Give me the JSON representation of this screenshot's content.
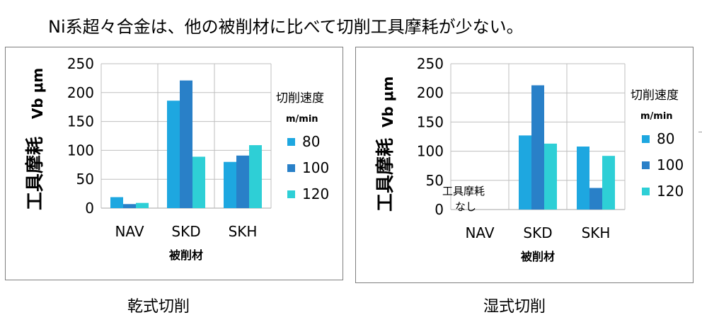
{
  "headline": "Ni系超々合金は、他の被削材に比べて切削工具摩耗が少ない。",
  "colors": {
    "s80": "#1ea7e0",
    "s100": "#2980c8",
    "s120": "#2ecfd6",
    "grid": "#bfbfbf"
  },
  "chart_data": [
    {
      "type": "bar",
      "caption": "乾式切削",
      "categories": [
        "NAV",
        "SKD",
        "SKH"
      ],
      "series": [
        {
          "name": "80",
          "values": [
            19,
            186,
            80
          ]
        },
        {
          "name": "100",
          "values": [
            7,
            221,
            91
          ]
        },
        {
          "name": "120",
          "values": [
            9,
            89,
            109
          ]
        }
      ],
      "xlabel": "被削材",
      "ylabel_main": "工具摩耗",
      "ylabel_unit": "Vb μm",
      "ylim": [
        0,
        250
      ],
      "yticks": [
        0,
        50,
        100,
        150,
        200,
        250
      ],
      "legend_title": "切削速度",
      "legend_unit": "m/min",
      "legend_position": "right",
      "annotation": ""
    },
    {
      "type": "bar",
      "caption": "湿式切削",
      "categories": [
        "NAV",
        "SKD",
        "SKH"
      ],
      "series": [
        {
          "name": "80",
          "values": [
            0,
            127,
            108
          ]
        },
        {
          "name": "100",
          "values": [
            0,
            213,
            37
          ]
        },
        {
          "name": "120",
          "values": [
            0,
            113,
            92
          ]
        }
      ],
      "xlabel": "被削材",
      "ylabel_main": "工具摩耗",
      "ylabel_unit": "Vb μm",
      "ylim": [
        0,
        250
      ],
      "yticks": [
        0,
        50,
        100,
        150,
        200,
        250
      ],
      "legend_title": "切削速度",
      "legend_unit": "m/min",
      "legend_position": "right",
      "annotation": "工具摩耗\nなし"
    }
  ]
}
